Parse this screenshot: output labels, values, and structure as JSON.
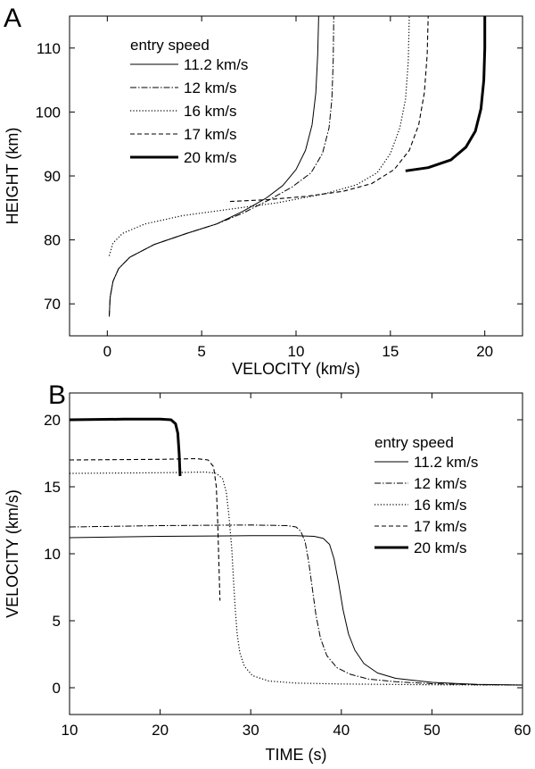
{
  "chart_data": [
    {
      "panel": "A",
      "type": "line",
      "xlabel": "VELOCITY (km/s)",
      "ylabel": "HEIGHT (km)",
      "xlim": [
        -2,
        22
      ],
      "ylim": [
        65,
        115
      ],
      "xticks": [
        0,
        5,
        10,
        15,
        20
      ],
      "yticks": [
        70,
        80,
        90,
        100,
        110
      ],
      "legend_title": "entry speed",
      "legend_position": "top-left",
      "series": [
        {
          "name": "11.2 km/s",
          "style": "solid",
          "x": [
            0.1,
            0.15,
            0.3,
            0.6,
            1.2,
            2.5,
            4.2,
            5.8,
            7.2,
            8.4,
            9.3,
            10.0,
            10.5,
            10.85,
            11.05,
            11.15,
            11.2
          ],
          "y": [
            68,
            71,
            73.5,
            75.5,
            77.3,
            79.3,
            81,
            82.5,
            84.5,
            86.5,
            88.5,
            91,
            94,
            98,
            103,
            109,
            115
          ]
        },
        {
          "name": "12 km/s",
          "style": "dashdot",
          "x": [
            0.1,
            0.15,
            0.3,
            0.6,
            1.2,
            2.5,
            4.2,
            5.8,
            7.2,
            8.6,
            9.8,
            10.8,
            11.4,
            11.75,
            11.9,
            11.97,
            12.0
          ],
          "y": [
            68,
            71,
            73.5,
            75.5,
            77.3,
            79.3,
            81,
            82.5,
            84.2,
            86.3,
            88.3,
            90.5,
            93.5,
            97.5,
            102,
            108,
            115
          ]
        },
        {
          "name": "16 km/s",
          "style": "dotted",
          "x": [
            0.1,
            0.3,
            0.8,
            2,
            4,
            6.5,
            9,
            11.5,
            13.2,
            14.3,
            15.0,
            15.5,
            15.8,
            15.95,
            16.0
          ],
          "y": [
            77.5,
            79.5,
            81,
            82.5,
            83.8,
            84.8,
            85.8,
            87.2,
            88.6,
            90.5,
            93.5,
            97.5,
            102,
            108,
            115
          ]
        },
        {
          "name": "17 km/s",
          "style": "dashed",
          "x": [
            6.5,
            8.5,
            10.5,
            12.5,
            14.0,
            15.2,
            16.0,
            16.5,
            16.8,
            16.95,
            17.0
          ],
          "y": [
            86,
            86.3,
            86.8,
            87.6,
            88.8,
            91,
            94,
            98,
            103,
            109,
            115
          ]
        },
        {
          "name": "20 km/s",
          "style": "thick",
          "x": [
            15.8,
            17.0,
            18.2,
            19.0,
            19.5,
            19.8,
            19.95,
            20.0,
            20.0
          ],
          "y": [
            90.8,
            91.3,
            92.5,
            94.5,
            97,
            100.5,
            105,
            110,
            115
          ]
        }
      ]
    },
    {
      "panel": "B",
      "type": "line",
      "xlabel": "TIME (s)",
      "ylabel": "VELOCITY (km/s)",
      "xlim": [
        10,
        60
      ],
      "ylim": [
        -2,
        22
      ],
      "xticks": [
        10,
        20,
        30,
        40,
        50,
        60
      ],
      "yticks": [
        0,
        5,
        10,
        15,
        20
      ],
      "legend_title": "entry speed",
      "legend_position": "top-right",
      "series": [
        {
          "name": "11.2 km/s",
          "style": "solid",
          "x": [
            10,
            20,
            30,
            35,
            37,
            38,
            38.7,
            39.2,
            39.7,
            40.2,
            40.8,
            41.5,
            42.5,
            44,
            46,
            50,
            55,
            60
          ],
          "y": [
            11.2,
            11.3,
            11.35,
            11.35,
            11.3,
            11.15,
            10.7,
            9.6,
            7.8,
            5.8,
            4.0,
            2.8,
            1.8,
            1.1,
            0.7,
            0.4,
            0.25,
            0.2
          ]
        },
        {
          "name": "12 km/s",
          "style": "dashdot",
          "x": [
            10,
            20,
            30,
            34,
            35,
            35.5,
            36,
            36.4,
            36.8,
            37.2,
            37.7,
            38.4,
            39.5,
            41,
            43,
            46,
            50,
            55,
            60
          ],
          "y": [
            12.0,
            12.1,
            12.15,
            12.1,
            12.0,
            11.7,
            10.9,
            9.4,
            7.4,
            5.4,
            3.7,
            2.4,
            1.5,
            1.0,
            0.65,
            0.45,
            0.3,
            0.22,
            0.2
          ]
        },
        {
          "name": "16 km/s",
          "style": "dotted",
          "x": [
            10,
            20,
            25,
            26.2,
            26.9,
            27.3,
            27.6,
            27.9,
            28.1,
            28.3,
            28.5,
            28.8,
            29.3,
            30.2,
            32,
            35,
            40,
            50,
            60
          ],
          "y": [
            16.0,
            16.05,
            16.1,
            16.0,
            15.6,
            14.6,
            12.8,
            10.4,
            8.0,
            5.8,
            4.0,
            2.6,
            1.6,
            0.9,
            0.5,
            0.35,
            0.28,
            0.22,
            0.2
          ]
        },
        {
          "name": "17 km/s",
          "style": "dashed",
          "x": [
            10,
            20,
            24,
            25.3,
            25.9,
            26.2,
            26.35,
            26.5,
            26.6
          ],
          "y": [
            17.0,
            17.05,
            17.1,
            17.0,
            16.5,
            15.0,
            12.5,
            9.0,
            6.5
          ]
        },
        {
          "name": "20 km/s",
          "style": "thick",
          "x": [
            10,
            16,
            20,
            21.2,
            21.7,
            21.95,
            22.1,
            22.2
          ],
          "y": [
            20.0,
            20.05,
            20.05,
            20.0,
            19.7,
            19.0,
            17.5,
            15.8
          ]
        }
      ]
    }
  ]
}
